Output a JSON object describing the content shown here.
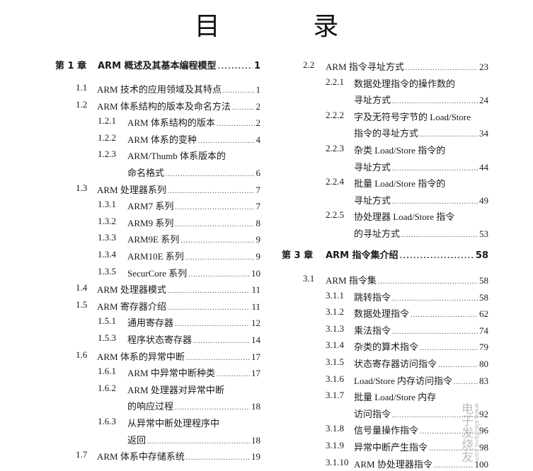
{
  "title": "目    录",
  "watermark": {
    "text": "电子发烧友",
    "url": "www.elecfans.com"
  },
  "left_column": [
    {
      "kind": "chapter",
      "num": "第 1 章",
      "title": "ARM 概述及其基本编程模型",
      "page": "1"
    },
    {
      "kind": "l1",
      "num": "1.1",
      "title": "ARM 技术的应用领域及其特点",
      "page": "1"
    },
    {
      "kind": "l1",
      "num": "1.2",
      "title": "ARM 体系结构的版本及命名方法",
      "page": "2"
    },
    {
      "kind": "l2",
      "num": "1.2.1",
      "title": "ARM 体系结构的版本",
      "page": "2"
    },
    {
      "kind": "l2",
      "num": "1.2.2",
      "title": "ARM 体系的变种",
      "page": "4"
    },
    {
      "kind": "l2",
      "num": "1.2.3",
      "title": "ARM/Thumb 体系版本的",
      "page": ""
    },
    {
      "kind": "cont",
      "num": "",
      "title": "命名格式",
      "page": "6"
    },
    {
      "kind": "l1",
      "num": "1.3",
      "title": "ARM 处理器系列",
      "page": "7"
    },
    {
      "kind": "l2",
      "num": "1.3.1",
      "title": "ARM7 系列",
      "page": "7"
    },
    {
      "kind": "l2",
      "num": "1.3.2",
      "title": "ARM9 系列",
      "page": "8"
    },
    {
      "kind": "l2",
      "num": "1.3.3",
      "title": "ARM9E 系列",
      "page": "9"
    },
    {
      "kind": "l2",
      "num": "1.3.4",
      "title": "ARM10E 系列",
      "page": "9"
    },
    {
      "kind": "l2",
      "num": "1.3.5",
      "title": "SecurCore 系列",
      "page": "10"
    },
    {
      "kind": "l1",
      "num": "1.4",
      "title": "ARM 处理器模式",
      "page": "11"
    },
    {
      "kind": "l1",
      "num": "1.5",
      "title": "ARM 寄存器介绍",
      "page": "11"
    },
    {
      "kind": "l2",
      "num": "1.5.1",
      "title": "通用寄存器",
      "page": "12"
    },
    {
      "kind": "l2",
      "num": "1.5.3",
      "title": "程序状态寄存器",
      "page": "14"
    },
    {
      "kind": "l1",
      "num": "1.6",
      "title": "ARM 体系的异常中断",
      "page": "17"
    },
    {
      "kind": "l2",
      "num": "1.6.1",
      "title": "ARM 中异常中断种类",
      "page": "17"
    },
    {
      "kind": "l2",
      "num": "1.6.2",
      "title": "ARM 处理器对异常中断",
      "page": ""
    },
    {
      "kind": "cont",
      "num": "",
      "title": "的响应过程",
      "page": "18"
    },
    {
      "kind": "l2",
      "num": "1.6.3",
      "title": "从异常中断处理程序中",
      "page": ""
    },
    {
      "kind": "cont",
      "num": "",
      "title": "返回",
      "page": "18"
    },
    {
      "kind": "l1",
      "num": "1.7",
      "title": "ARM 体系中存储系统",
      "page": "19"
    }
  ],
  "right_column": [
    {
      "kind": "l1",
      "num": "2.2",
      "title": "ARM 指令寻址方式",
      "page": "23"
    },
    {
      "kind": "l2",
      "num": "2.2.1",
      "title": "数据处理指令的操作数的",
      "page": ""
    },
    {
      "kind": "cont",
      "num": "",
      "title": "寻址方式",
      "page": "24"
    },
    {
      "kind": "l2",
      "num": "2.2.2",
      "title": "字及无符号字节的 Load/Store",
      "page": ""
    },
    {
      "kind": "cont",
      "num": "",
      "title": "指令的寻址方式",
      "page": "34"
    },
    {
      "kind": "l2",
      "num": "2.2.3",
      "title": "杂类 Load/Store 指令的",
      "page": ""
    },
    {
      "kind": "cont",
      "num": "",
      "title": "寻址方式",
      "page": "44"
    },
    {
      "kind": "l2",
      "num": "2.2.4",
      "title": "批量 Load/Store 指令的",
      "page": ""
    },
    {
      "kind": "cont",
      "num": "",
      "title": "寻址方式",
      "page": "49"
    },
    {
      "kind": "l2",
      "num": "2.2.5",
      "title": "协处理器 Load/Store 指令",
      "page": ""
    },
    {
      "kind": "cont",
      "num": "",
      "title": "的寻址方式",
      "page": "53"
    },
    {
      "kind": "chapter",
      "num": "第 3 章",
      "title": "ARM 指令集介绍",
      "page": "58"
    },
    {
      "kind": "l1",
      "num": "3.1",
      "title": "ARM 指令集",
      "page": "58"
    },
    {
      "kind": "l2",
      "num": "3.1.1",
      "title": "跳转指令",
      "page": "58"
    },
    {
      "kind": "l2",
      "num": "3.1.2",
      "title": "数据处理指令",
      "page": "62"
    },
    {
      "kind": "l2",
      "num": "3.1.3",
      "title": "乘法指令",
      "page": "74"
    },
    {
      "kind": "l2",
      "num": "3.1.4",
      "title": "杂类的算术指令",
      "page": "79"
    },
    {
      "kind": "l2",
      "num": "3.1.5",
      "title": "状态寄存器访问指令",
      "page": "80"
    },
    {
      "kind": "l2",
      "num": "3.1.6",
      "title": "Load/Store 内存访问指令",
      "page": "83"
    },
    {
      "kind": "l2",
      "num": "3.1.7",
      "title": "批量 Load/Store 内存",
      "page": ""
    },
    {
      "kind": "cont",
      "num": "",
      "title": "访问指令",
      "page": "92"
    },
    {
      "kind": "l2",
      "num": "3.1.8",
      "title": "信号量操作指令",
      "page": "96"
    },
    {
      "kind": "l2",
      "num": "3.1.9",
      "title": "异常中断产生指令",
      "page": "98"
    },
    {
      "kind": "l2",
      "num": "3.1.10",
      "title": "ARM 协处理器指令",
      "page": "100"
    }
  ]
}
